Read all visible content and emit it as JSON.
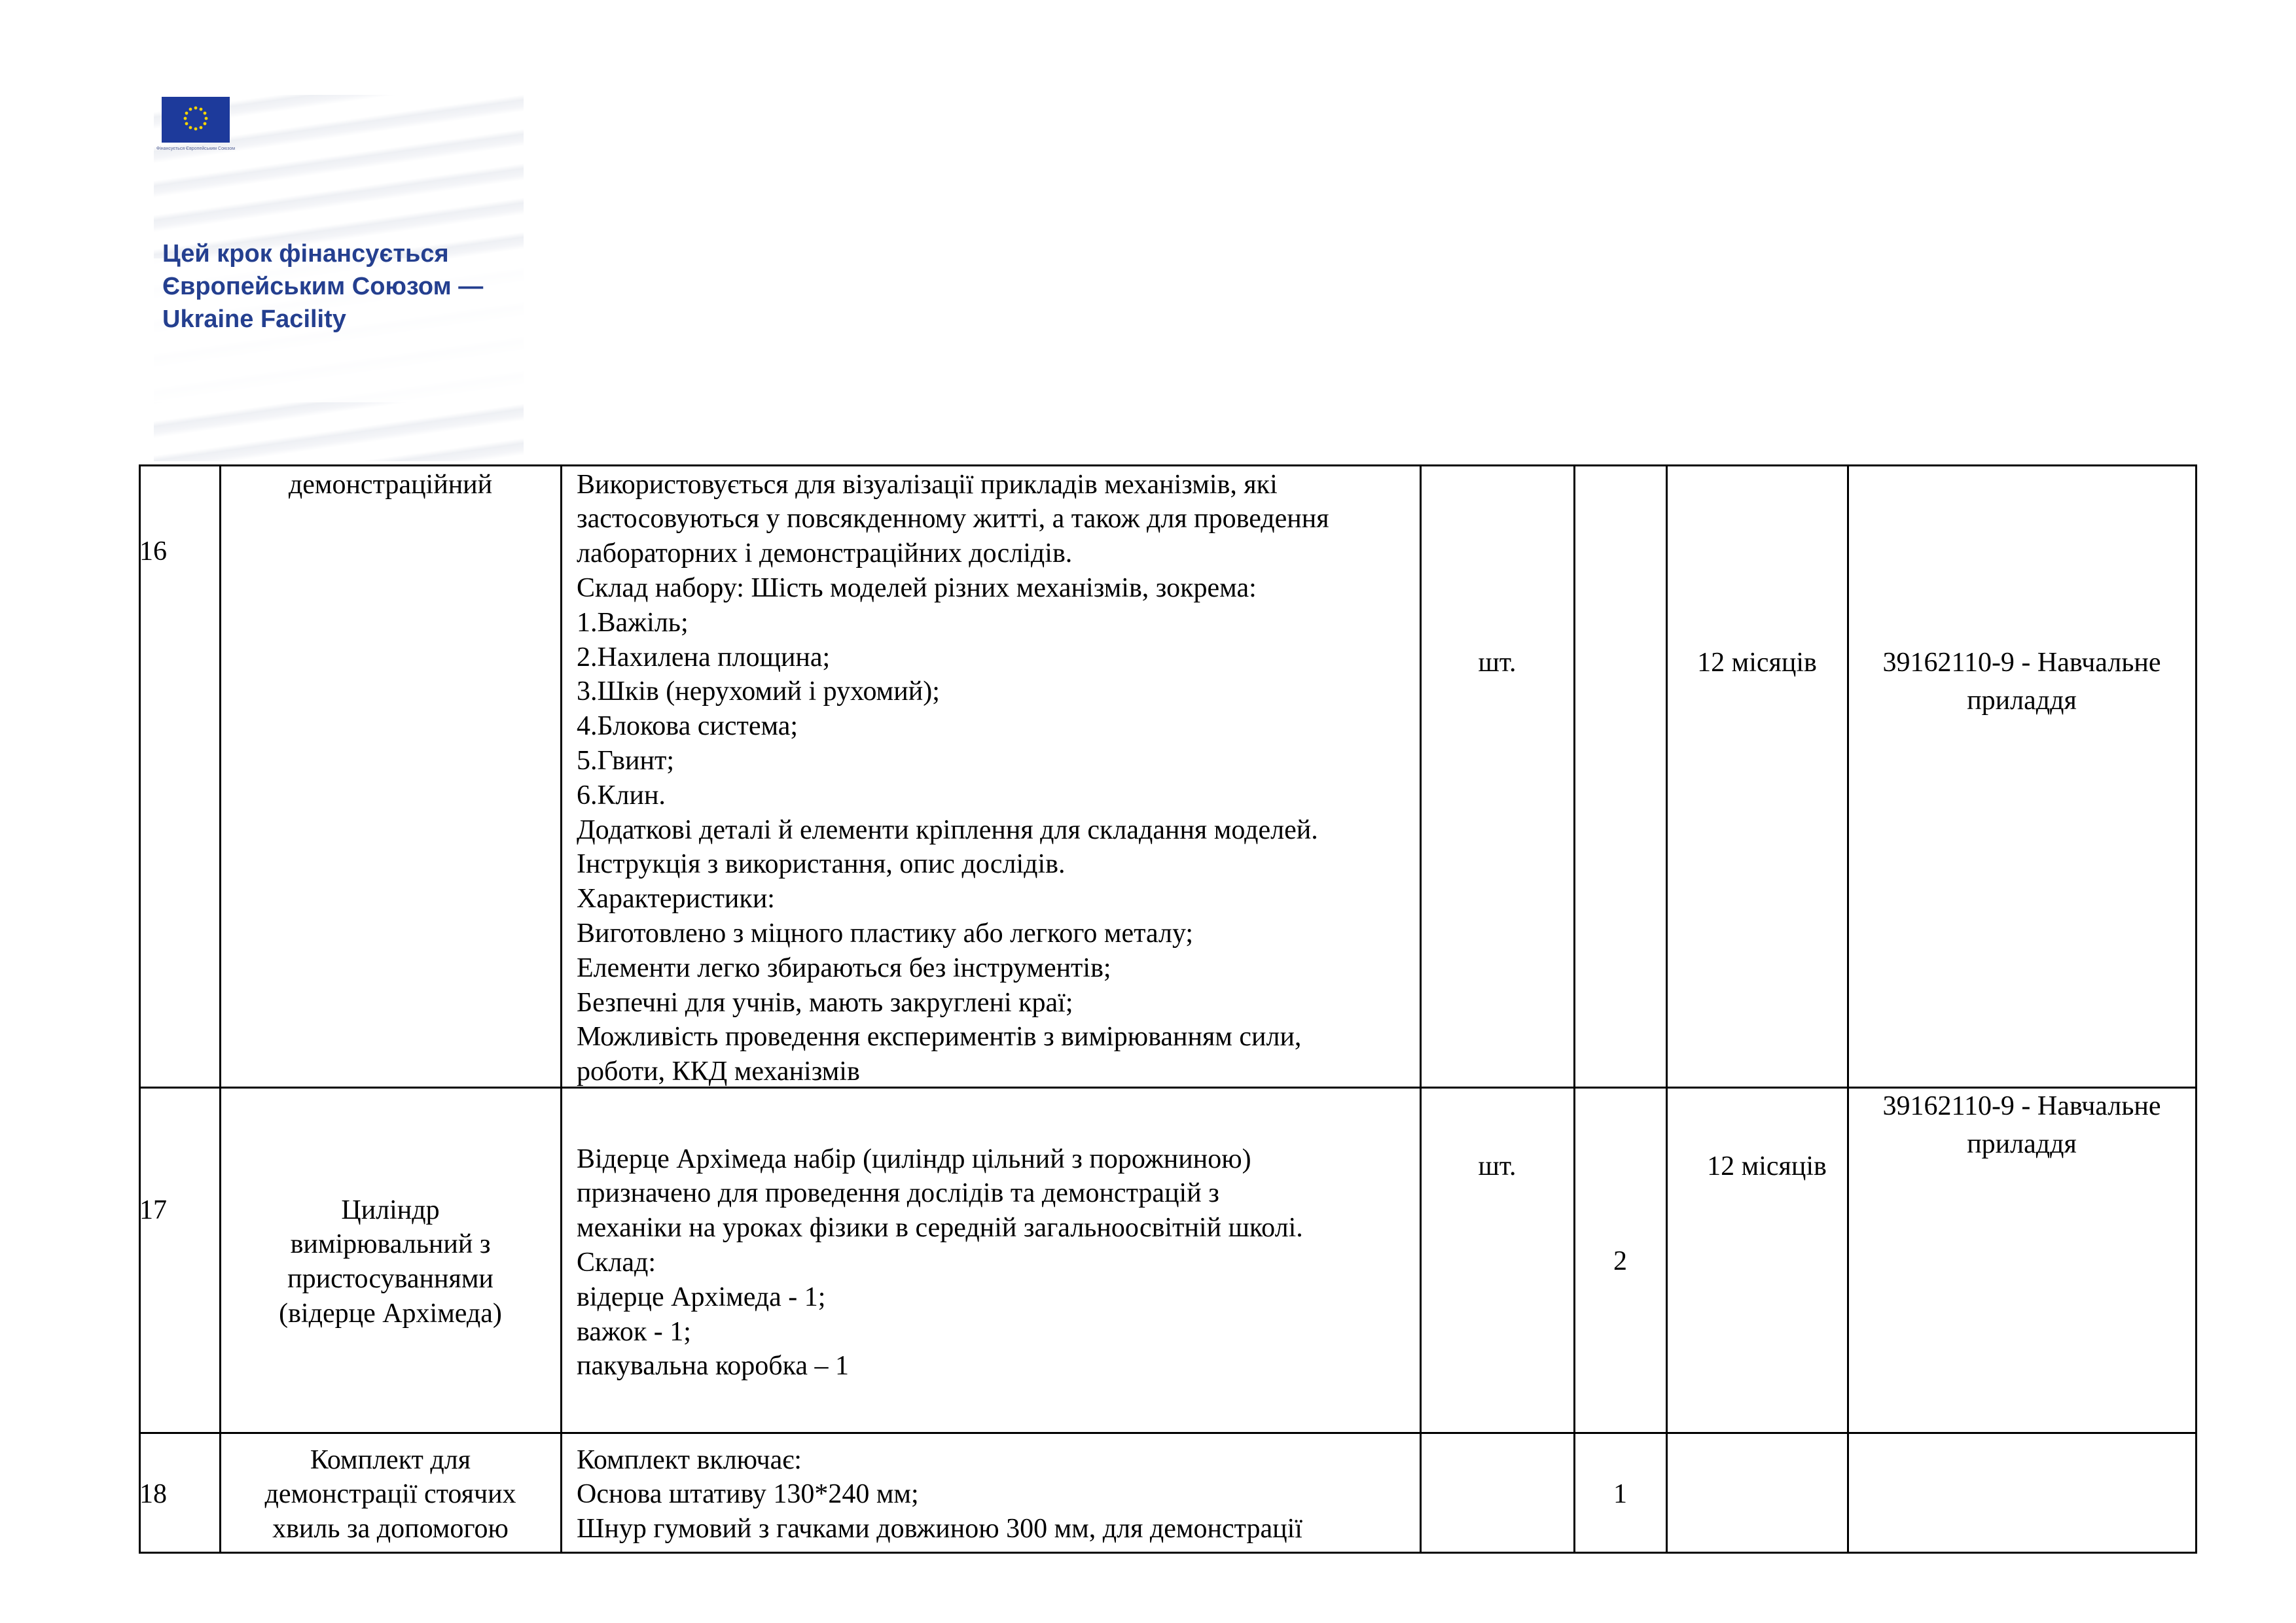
{
  "logo": {
    "flag_caption": "Фінансується Європейським Союзом",
    "slogan_lines": [
      "Цей крок фінансується",
      "Європейським Союзом —",
      "Ukraine Facility"
    ],
    "brand_color": "#243f8f",
    "flag_color": "#1d3a9b"
  },
  "table": {
    "rows": [
      {
        "number": "16",
        "name_lines": [
          "демонстраційний"
        ],
        "description_lines": [
          "Використовується для візуалізації прикладів механізмів, які",
          "застосовуються у повсякденному житті, а також для проведення",
          "лабораторних і демонстраційних дослідів.",
          "Склад набору: Шість моделей різних механізмів, зокрема:",
          "1.Важіль;",
          "2.Нахилена площина;",
          "3.Шків (нерухомий і рухомий);",
          "4.Блокова система;",
          "5.Гвинт;",
          "6.Клин.",
          "Додаткові деталі й елементи кріплення для складання моделей.",
          "Інструкція з використання, опис дослідів.",
          "Характеристики:",
          "Виготовлено з міцного пластику або легкого металу;",
          "Елементи легко збираються без інструментів;",
          "Безпечні для учнів, мають закруглені краї;",
          "Можливість проведення експериментів з вимірюванням сили,",
          "роботи, ККД механізмів"
        ],
        "unit": "шт.",
        "quantity": "",
        "warranty": "12 місяців",
        "code_lines": [
          "39162110-9 - Навчальне",
          "приладдя"
        ]
      },
      {
        "number": "17",
        "name_lines": [
          "Циліндр",
          "вимірювальний з",
          "пристосуваннями",
          "(відерце Архімеда)"
        ],
        "description_lines": [
          "Відерце Архімеда набір  (циліндр цільний з порожниною)",
          "призначено  для проведення дослідів та демонстрацій  з",
          "механіки на уроках фізики в середній загальноосвітній школі.",
          "Склад:",
          "відерце Архімеда -  1;",
          "важок - 1;",
          "пакувальна коробка – 1"
        ],
        "unit": "шт.",
        "quantity": "2",
        "warranty": "12 місяців",
        "code_lines": [
          "39162110-9 - Навчальне",
          "приладдя"
        ]
      },
      {
        "number": "18",
        "name_lines": [
          "Комплект для",
          "демонстрації стоячих",
          "хвиль за допомогою"
        ],
        "description_lines": [
          "Комплект включає:",
          "Основа штативу 130*240 мм;",
          "Шнур гумовий з гачками довжиною 300 мм, для демонстрації"
        ],
        "unit": "",
        "quantity": "1",
        "warranty": "",
        "code_lines": []
      }
    ]
  }
}
